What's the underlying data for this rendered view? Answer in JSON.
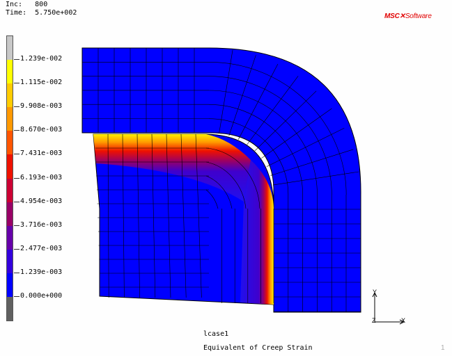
{
  "header": {
    "inc_label": "Inc:",
    "inc_value": "800",
    "time_label": "Time:",
    "time_value": "5.750e+002"
  },
  "logo": {
    "part1": "MSC",
    "part2": "Software"
  },
  "legend": {
    "labels": [
      "1.239e-002",
      "1.115e-002",
      "9.908e-003",
      "8.670e-003",
      "7.431e-003",
      "6.193e-003",
      "4.954e-003",
      "3.716e-003",
      "2.477e-003",
      "1.239e-003",
      "0.000e+000"
    ],
    "colors": [
      "#c8c8c8",
      "#ffff00",
      "#ffcc00",
      "#ff9900",
      "#ff5500",
      "#ee1100",
      "#cc0033",
      "#990066",
      "#6600aa",
      "#3300dd",
      "#0000ff",
      "#606060"
    ]
  },
  "footer": {
    "loadcase": "lcase1",
    "title": "Equivalent of Creep Strain",
    "page": "1"
  },
  "axes": {
    "y": "Y",
    "z": "Z",
    "x": "X"
  }
}
